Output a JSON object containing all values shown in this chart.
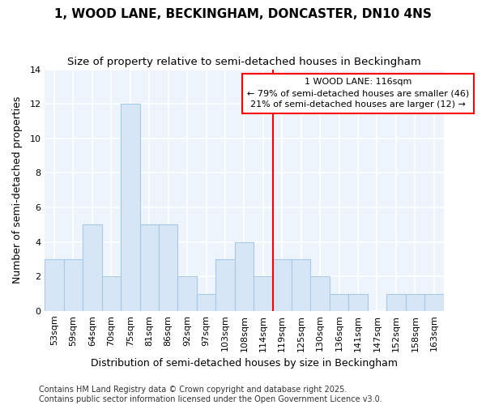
{
  "title_line1": "1, WOOD LANE, BECKINGHAM, DONCASTER, DN10 4NS",
  "title_line2": "Size of property relative to semi-detached houses in Beckingham",
  "xlabel": "Distribution of semi-detached houses by size in Beckingham",
  "ylabel": "Number of semi-detached properties",
  "categories": [
    "53sqm",
    "59sqm",
    "64sqm",
    "70sqm",
    "75sqm",
    "81sqm",
    "86sqm",
    "92sqm",
    "97sqm",
    "103sqm",
    "108sqm",
    "114sqm",
    "119sqm",
    "125sqm",
    "130sqm",
    "136sqm",
    "141sqm",
    "147sqm",
    "152sqm",
    "158sqm",
    "163sqm"
  ],
  "values": [
    3,
    3,
    5,
    2,
    12,
    5,
    5,
    2,
    1,
    3,
    4,
    2,
    3,
    3,
    2,
    1,
    1,
    0,
    1,
    1,
    1
  ],
  "bar_color": "#d6e6f5",
  "bar_edge_color": "#a8c8e8",
  "vline_x": 11.5,
  "annotation_text_line1": "1 WOOD LANE: 116sqm",
  "annotation_text_line2": "← 79% of semi-detached houses are smaller (46)",
  "annotation_text_line3": "21% of semi-detached houses are larger (12) →",
  "footnote": "Contains HM Land Registry data © Crown copyright and database right 2025.\nContains public sector information licensed under the Open Government Licence v3.0.",
  "ylim": [
    0,
    14
  ],
  "yticks": [
    0,
    2,
    4,
    6,
    8,
    10,
    12,
    14
  ],
  "background_color": "#ffffff",
  "plot_bg_color": "#eef4fb",
  "grid_color": "#ffffff",
  "title_fontsize": 11,
  "subtitle_fontsize": 9.5,
  "axis_label_fontsize": 9,
  "tick_fontsize": 8,
  "annotation_fontsize": 8,
  "footnote_fontsize": 7
}
